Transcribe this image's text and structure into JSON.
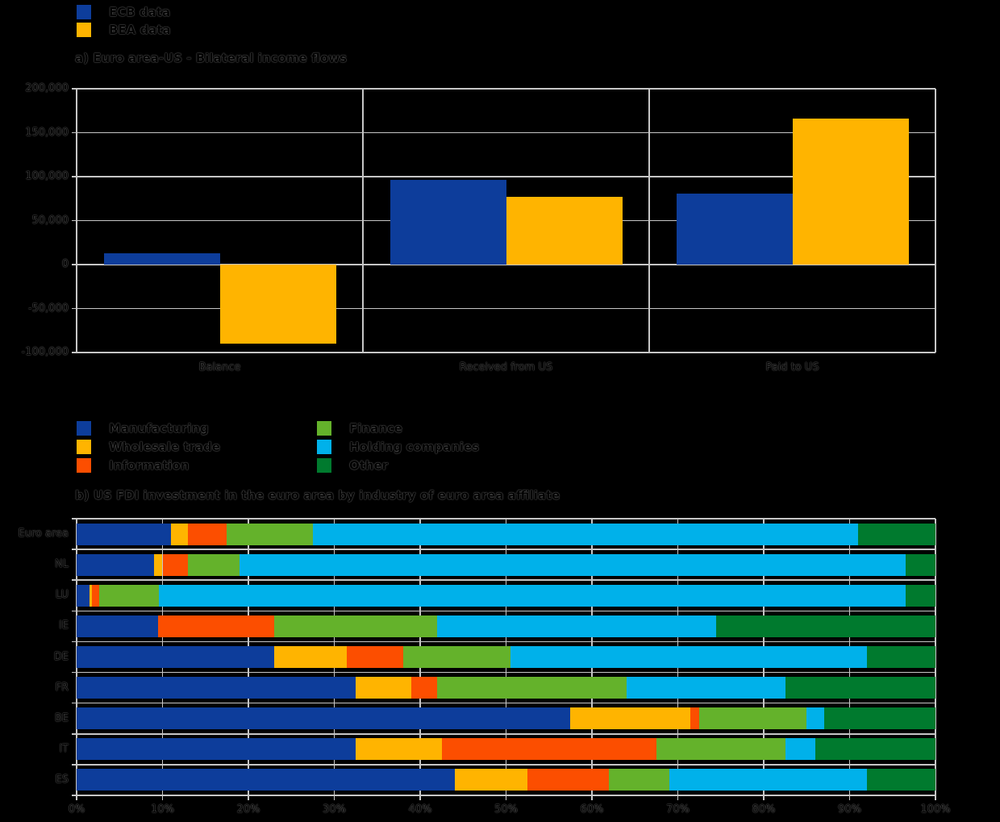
{
  "style": {
    "background": "#000000",
    "grid_color": "#c6c6c6",
    "text_color": "#000000"
  },
  "chart_data": [
    {
      "type": "bar",
      "orientation": "vertical-grouped",
      "title": "a) Euro area-US - Bilateral income flows",
      "categories": [
        "Balance",
        "Received from US",
        "Paid to US"
      ],
      "series": [
        {
          "name": "ECB data",
          "color": "#0d3d9b",
          "values": [
            13000,
            96000,
            81000
          ]
        },
        {
          "name": "BEA data",
          "color": "#ffb400",
          "values": [
            -90000,
            77000,
            166000
          ]
        }
      ],
      "ylim": [
        -100000,
        200000
      ],
      "ytick_step": 50000,
      "ytick_labels": [
        "200,000",
        "150,000",
        "100,000",
        "50,000",
        "0",
        "-50,000",
        "-100,000"
      ],
      "grid": true,
      "legend_position": "top-left"
    },
    {
      "type": "bar",
      "orientation": "horizontal-stacked-100pct",
      "title": "b) US FDI investment in the euro area by industry of euro area affiliate",
      "categories": [
        "Euro area",
        "NL",
        "LU",
        "IE",
        "DE",
        "FR",
        "BE",
        "IT",
        "ES"
      ],
      "series": [
        {
          "name": "Manufacturing",
          "color": "#0d3d9b",
          "values": [
            11,
            9,
            1.5,
            9.5,
            23,
            32.5,
            57.5,
            32.5,
            44
          ]
        },
        {
          "name": "Wholesale trade",
          "color": "#ffb400",
          "values": [
            2,
            1,
            0.3,
            0,
            8.5,
            6.5,
            14,
            10,
            8.5
          ]
        },
        {
          "name": "Information",
          "color": "#fc4e00",
          "values": [
            4.5,
            3,
            0.8,
            13.5,
            6.5,
            3,
            1,
            25,
            9.5
          ]
        },
        {
          "name": "Finance",
          "color": "#64b22b",
          "values": [
            10,
            6,
            7,
            19,
            12.5,
            22,
            12.5,
            15,
            7
          ]
        },
        {
          "name": "Holding companies",
          "color": "#00b1ea",
          "values": [
            63.5,
            77.5,
            86.9,
            32.5,
            41.5,
            18.5,
            2,
            3.5,
            23
          ]
        },
        {
          "name": "Other",
          "color": "#007a2e",
          "values": [
            9,
            3.5,
            3.5,
            25.5,
            8,
            17.5,
            13,
            14,
            8
          ]
        }
      ],
      "xlim": [
        0,
        100
      ],
      "xtick_labels": [
        "0%",
        "10%",
        "20%",
        "30%",
        "40%",
        "50%",
        "60%",
        "70%",
        "80%",
        "90%",
        "100%"
      ],
      "grid": true,
      "legend_position": "top-left-two-columns"
    }
  ]
}
